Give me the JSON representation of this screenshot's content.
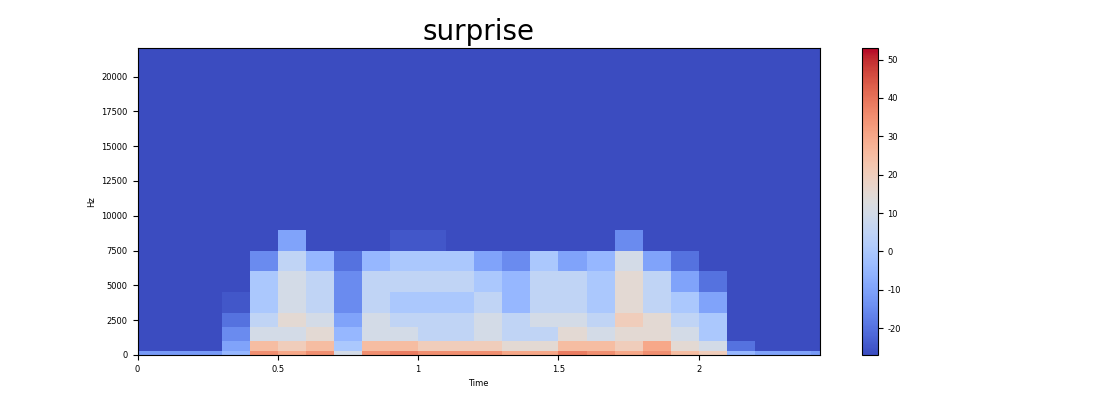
{
  "chart_data": {
    "type": "spectrogram",
    "title": "surprise",
    "x_label": "Time",
    "y_label": "Hz",
    "xlim": [
      0,
      2.43
    ],
    "xticks": [
      0,
      0.5,
      1,
      1.5,
      2
    ],
    "ylim": [
      0,
      22050
    ],
    "yticks": [
      0,
      2500,
      5000,
      7500,
      10000,
      12500,
      15000,
      17500,
      20000
    ],
    "x_bins": [
      0,
      0.1,
      0.2,
      0.3,
      0.4,
      0.5,
      0.6,
      0.7,
      0.8,
      0.9,
      1.0,
      1.1,
      1.2,
      1.3,
      1.4,
      1.5,
      1.6,
      1.7,
      1.8,
      1.9,
      2.0,
      2.1,
      2.2,
      2.3,
      2.4,
      2.43
    ],
    "y_bins": [
      0,
      300,
      1000,
      2000,
      3000,
      4500,
      6000,
      7500,
      9000,
      22050
    ],
    "cells": [
      [
        -12,
        -12,
        -12,
        -5,
        35,
        30,
        35,
        10,
        35,
        38,
        35,
        35,
        35,
        30,
        30,
        38,
        35,
        30,
        35,
        25,
        20,
        -5,
        -10,
        -10,
        -12
      ],
      [
        -27,
        -27,
        -27,
        -10,
        25,
        20,
        25,
        0,
        25,
        25,
        20,
        20,
        20,
        15,
        15,
        25,
        25,
        20,
        30,
        15,
        10,
        -20,
        -27,
        -27,
        -27
      ],
      [
        -27,
        -27,
        -27,
        -15,
        10,
        10,
        15,
        -5,
        10,
        10,
        5,
        5,
        10,
        5,
        5,
        15,
        10,
        15,
        15,
        10,
        0,
        -27,
        -27,
        -27,
        -27
      ],
      [
        -27,
        -27,
        -27,
        -20,
        5,
        15,
        10,
        -10,
        10,
        5,
        5,
        5,
        10,
        5,
        10,
        10,
        5,
        20,
        15,
        5,
        0,
        -27,
        -27,
        -27,
        -27
      ],
      [
        -27,
        -27,
        -27,
        -25,
        0,
        10,
        5,
        -15,
        5,
        0,
        0,
        0,
        5,
        -5,
        5,
        5,
        0,
        15,
        5,
        0,
        -10,
        -27,
        -27,
        -27,
        -27
      ],
      [
        -27,
        -27,
        -27,
        -27,
        0,
        10,
        5,
        -15,
        5,
        5,
        5,
        5,
        0,
        -5,
        5,
        5,
        0,
        15,
        5,
        -10,
        -20,
        -27,
        -27,
        -27,
        -27
      ],
      [
        -27,
        -27,
        -27,
        -27,
        -15,
        5,
        -5,
        -20,
        -5,
        0,
        0,
        0,
        -10,
        -15,
        0,
        -10,
        -5,
        10,
        -10,
        -20,
        -27,
        -27,
        -27,
        -27,
        -27
      ],
      [
        -27,
        -27,
        -27,
        -27,
        -27,
        -10,
        -27,
        -27,
        -27,
        -25,
        -25,
        -27,
        -27,
        -27,
        -27,
        -27,
        -27,
        -15,
        -27,
        -27,
        -27,
        -27,
        -27,
        -27,
        -27
      ],
      [
        -27,
        -27,
        -27,
        -27,
        -27,
        -27,
        -27,
        -27,
        -27,
        -27,
        -27,
        -27,
        -27,
        -27,
        -27,
        -27,
        -27,
        -27,
        -27,
        -27,
        -27,
        -27,
        -27,
        -27,
        -27
      ]
    ],
    "colorbar_lim": [
      -27,
      53
    ],
    "colorbar_ticks": [
      -20,
      -10,
      0,
      10,
      20,
      30,
      40,
      50
    ]
  }
}
